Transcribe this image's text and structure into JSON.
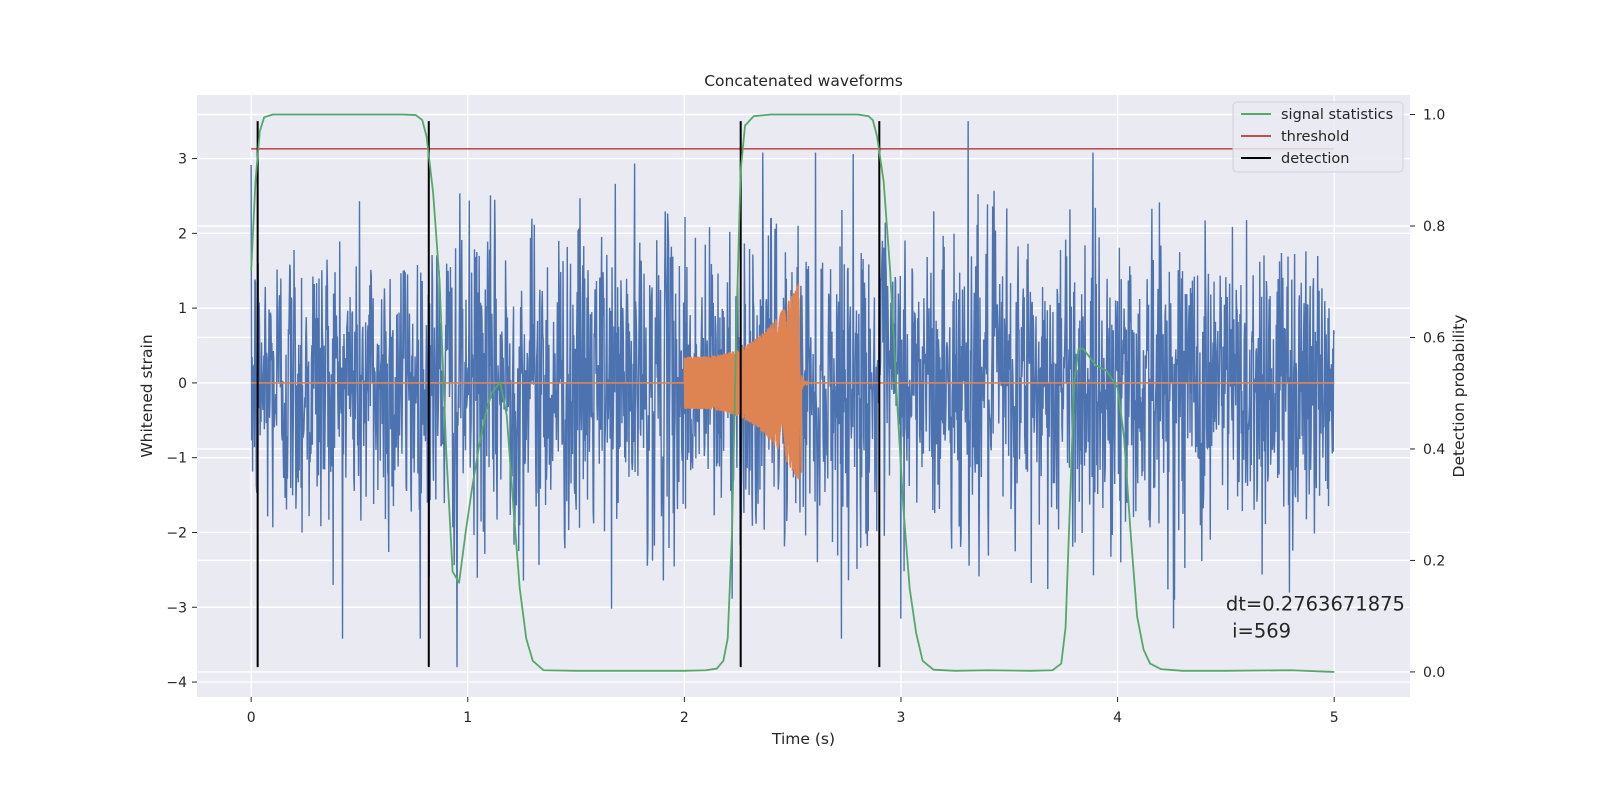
{
  "chart_data": {
    "type": "line",
    "title": "Concatenated waveforms",
    "xlabel": "Time (s)",
    "ylabel": "Whitened strain",
    "y2label": "Detection probability",
    "xlim": [
      -0.25,
      5.35
    ],
    "ylim": [
      -4.2,
      3.85
    ],
    "y2lim": [
      -0.045,
      1.035
    ],
    "x_ticks": [
      0,
      1,
      2,
      3,
      4,
      5
    ],
    "y_ticks": [
      -4,
      -3,
      -2,
      -1,
      0,
      1,
      2,
      3
    ],
    "y2_ticks": [
      0.0,
      0.2,
      0.4,
      0.6,
      0.8,
      1.0
    ],
    "x_tick_labels": [
      "0",
      "1",
      "2",
      "3",
      "4",
      "5"
    ],
    "y_tick_labels": [
      "−4",
      "−3",
      "−2",
      "−1",
      "0",
      "1",
      "2",
      "3"
    ],
    "y2_tick_labels": [
      "0.0",
      "0.2",
      "0.4",
      "0.6",
      "0.8",
      "1.0"
    ],
    "grid": true,
    "legend_position": "top-right",
    "legend": [
      {
        "label": "signal statistics",
        "color": "#55a868"
      },
      {
        "label": "threshold",
        "color": "#c44e52"
      },
      {
        "label": "detection",
        "color": "#000000"
      }
    ],
    "series": [
      {
        "kind": "noise",
        "color": "#4c72b0",
        "axis": "left",
        "x_range": [
          0,
          5
        ],
        "points": 2300,
        "sigma": 1.0,
        "y_range": [
          -3.8,
          3.5
        ],
        "max": [
          3.31,
          3.5
        ],
        "min": [
          0.95,
          -3.8
        ]
      },
      {
        "kind": "chirp",
        "color": "#dd8452",
        "axis": "left",
        "x_range": [
          0,
          5
        ],
        "start": 2.0,
        "peak": 2.53,
        "start_amp": 0.35,
        "peak_amp": 1.35,
        "end_amp": -1.2
      },
      {
        "name": "signal statistics",
        "color": "#55a868",
        "axis": "right",
        "x": [
          0,
          0.02,
          0.04,
          0.06,
          0.1,
          0.2,
          0.4,
          0.6,
          0.7,
          0.76,
          0.79,
          0.81,
          0.84,
          0.87,
          0.9,
          0.93,
          0.96,
          0.99,
          1.02,
          1.05,
          1.08,
          1.11,
          1.15,
          1.18,
          1.21,
          1.24,
          1.27,
          1.3,
          1.35,
          1.5,
          2.0,
          2.1,
          2.15,
          2.18,
          2.2,
          2.22,
          2.24,
          2.26,
          2.28,
          2.32,
          2.4,
          2.6,
          2.8,
          2.85,
          2.87,
          2.89,
          2.92,
          2.95,
          2.98,
          3.01,
          3.04,
          3.07,
          3.1,
          3.15,
          3.25,
          3.4,
          3.6,
          3.7,
          3.74,
          3.76,
          3.78,
          3.8,
          3.82,
          3.84,
          3.86,
          3.9,
          3.95,
          4.0,
          4.03,
          4.06,
          4.09,
          4.12,
          4.15,
          4.2,
          4.3,
          4.5,
          4.8,
          5.0
        ],
        "y": [
          0.72,
          0.88,
          0.97,
          0.995,
          1.0,
          1.0,
          1.0,
          1.0,
          1.0,
          0.999,
          0.99,
          0.96,
          0.86,
          0.7,
          0.4,
          0.18,
          0.16,
          0.25,
          0.33,
          0.4,
          0.46,
          0.5,
          0.52,
          0.46,
          0.3,
          0.15,
          0.06,
          0.02,
          0.003,
          0.002,
          0.002,
          0.003,
          0.006,
          0.02,
          0.06,
          0.25,
          0.62,
          0.9,
          0.98,
          0.997,
          1.0,
          1.0,
          1.0,
          0.997,
          0.99,
          0.96,
          0.88,
          0.72,
          0.5,
          0.3,
          0.15,
          0.07,
          0.02,
          0.004,
          0.002,
          0.003,
          0.002,
          0.003,
          0.015,
          0.08,
          0.3,
          0.52,
          0.58,
          0.58,
          0.57,
          0.55,
          0.54,
          0.51,
          0.42,
          0.25,
          0.1,
          0.04,
          0.015,
          0.005,
          0.002,
          0.002,
          0.003,
          0.0
        ]
      },
      {
        "name": "threshold",
        "color": "#c44e52",
        "axis": "left",
        "x": [
          0,
          5
        ],
        "y": [
          3.13,
          3.13
        ]
      }
    ],
    "detections": [
      0.03,
      0.82,
      2.26,
      2.9
    ],
    "detection_y_range": [
      -3.8,
      3.5
    ],
    "annotation": {
      "line1": "dt=0.2763671875",
      "line2": " i=569",
      "x": 4.5,
      "y": -3.0
    }
  }
}
